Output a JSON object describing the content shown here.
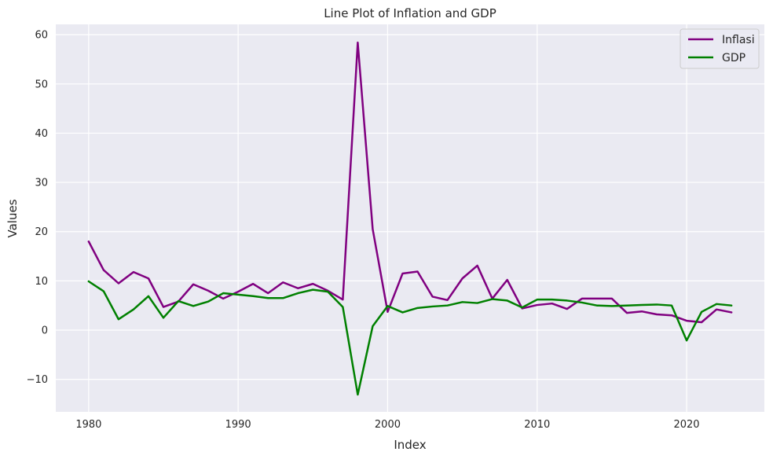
{
  "chart_data": {
    "type": "line",
    "title": "Line Plot of Inflation and GDP",
    "xlabel": "Index",
    "ylabel": "Values",
    "xlim": [
      1977.8,
      2025.2
    ],
    "ylim": [
      -16.6,
      62.1
    ],
    "xticks": [
      1980,
      1990,
      2000,
      2010,
      2020
    ],
    "yticks": [
      -10,
      0,
      10,
      20,
      30,
      40,
      50,
      60
    ],
    "ytick_labels": [
      "−10",
      "0",
      "10",
      "20",
      "30",
      "40",
      "50",
      "60"
    ],
    "grid": true,
    "legend_position": "top-right",
    "x": [
      1980,
      1981,
      1982,
      1983,
      1984,
      1985,
      1986,
      1987,
      1988,
      1989,
      1990,
      1991,
      1992,
      1993,
      1994,
      1995,
      1996,
      1997,
      1998,
      1999,
      2000,
      2001,
      2002,
      2003,
      2004,
      2005,
      2006,
      2007,
      2008,
      2009,
      2010,
      2011,
      2012,
      2013,
      2014,
      2015,
      2016,
      2017,
      2018,
      2019,
      2020,
      2021,
      2022,
      2023
    ],
    "series": [
      {
        "name": "Inflasi",
        "color": "#800080",
        "values": [
          18.0,
          12.2,
          9.5,
          11.8,
          10.5,
          4.7,
          5.8,
          9.3,
          8.0,
          6.4,
          7.8,
          9.4,
          7.5,
          9.7,
          8.5,
          9.4,
          8.0,
          6.2,
          58.4,
          20.5,
          3.7,
          11.5,
          11.9,
          6.8,
          6.1,
          10.5,
          13.1,
          6.4,
          10.2,
          4.4,
          5.1,
          5.4,
          4.3,
          6.4,
          6.4,
          6.4,
          3.5,
          3.8,
          3.2,
          3.0,
          1.9,
          1.6,
          4.2,
          3.6
        ]
      },
      {
        "name": "GDP",
        "color": "#008000",
        "values": [
          9.9,
          7.9,
          2.2,
          4.2,
          6.9,
          2.5,
          5.9,
          4.9,
          5.8,
          7.5,
          7.2,
          6.9,
          6.5,
          6.5,
          7.5,
          8.2,
          7.8,
          4.7,
          -13.1,
          0.8,
          4.9,
          3.6,
          4.5,
          4.8,
          5.0,
          5.7,
          5.5,
          6.3,
          6.0,
          4.6,
          6.2,
          6.2,
          6.0,
          5.6,
          5.0,
          4.9,
          5.0,
          5.1,
          5.2,
          5.0,
          -2.1,
          3.7,
          5.3,
          5.0
        ]
      }
    ]
  }
}
